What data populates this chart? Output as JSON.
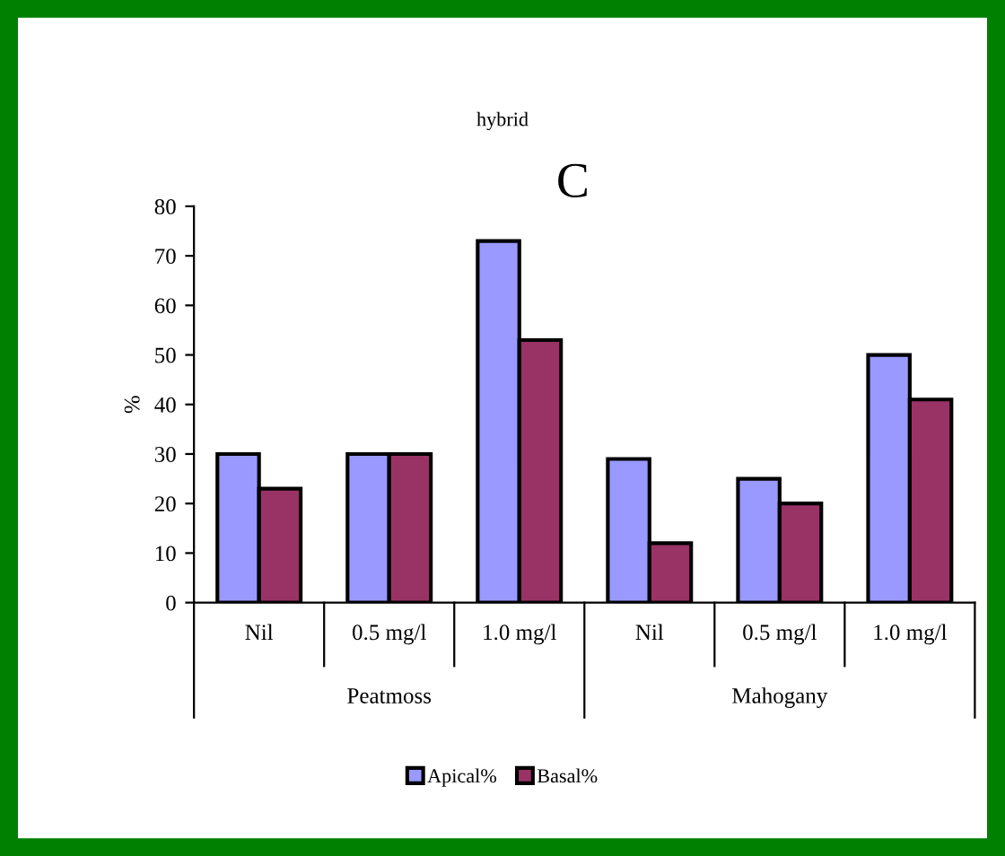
{
  "chart_data": {
    "type": "bar",
    "title": "hybrid",
    "ylabel": "%",
    "categories": [
      "Nil",
      "0.5 mg/l",
      "1.0 mg/l",
      "Nil",
      "0.5 mg/l",
      "1.0 mg/l"
    ],
    "series": [
      {
        "name": "Apical%",
        "color": "#9999ff",
        "values": [
          30,
          30,
          73,
          29,
          25,
          50
        ]
      },
      {
        "name": "Basal%",
        "color": "#993366",
        "values": [
          23,
          30,
          53,
          12,
          20,
          41
        ]
      }
    ],
    "ylim": [
      0,
      80
    ],
    "yticks": [
      0,
      10,
      20,
      30,
      40,
      50,
      60,
      70,
      80
    ],
    "grid": false,
    "legend": "bottom",
    "annotations": [
      "C",
      "Peatmoss",
      "Mahogany"
    ]
  }
}
